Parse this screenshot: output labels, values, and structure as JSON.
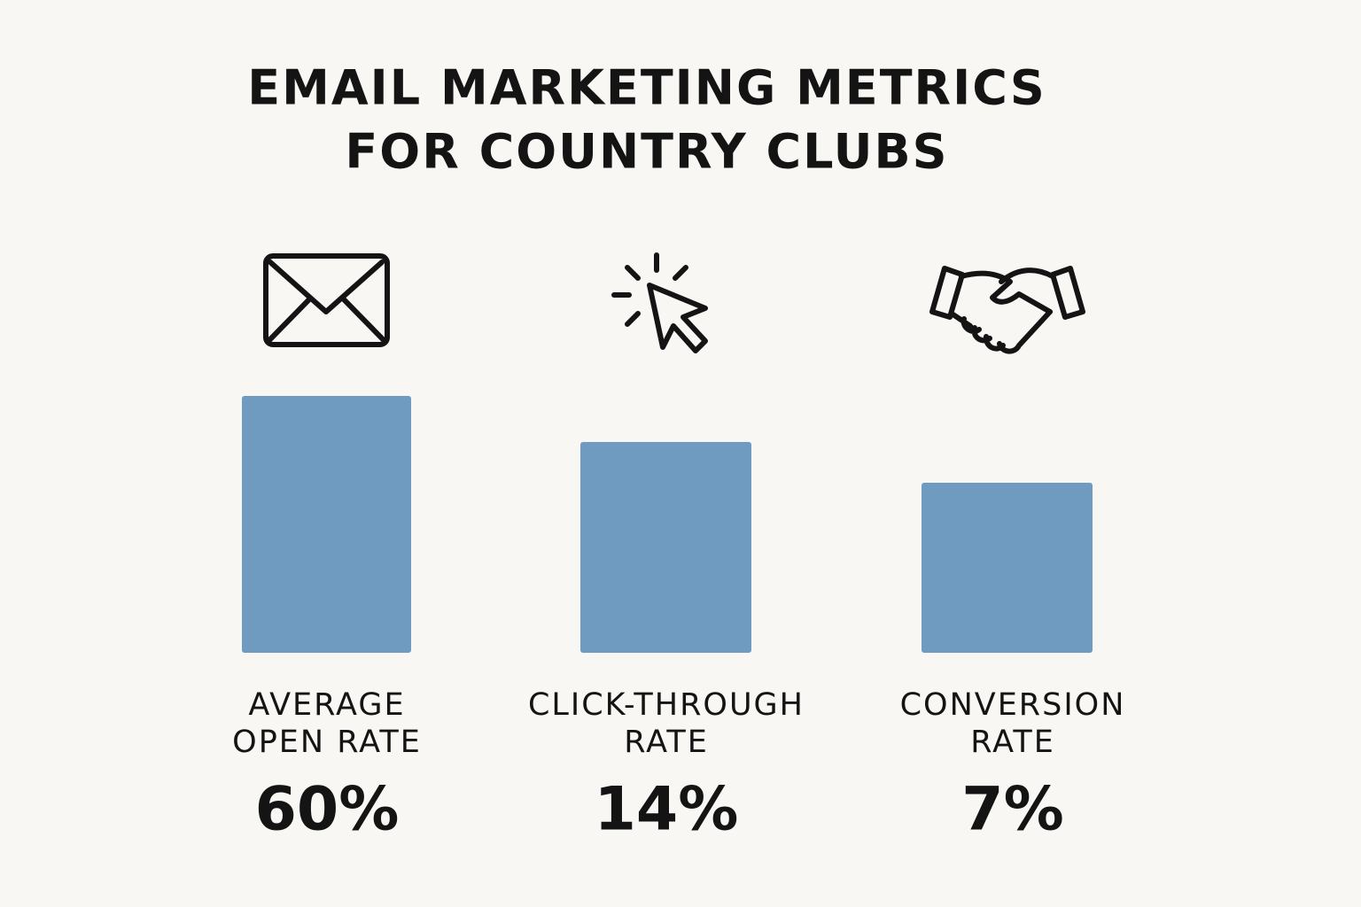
{
  "header": {
    "title": [
      "EMAIL MARKETING METRICS",
      "FOR COUNTRY CLUBS"
    ]
  },
  "items": [
    {
      "label": [
        "AVERAGE",
        "OPEN RATE"
      ],
      "value": "60%"
    },
    {
      "label": [
        "CLICK-THROUGH",
        "RATE"
      ],
      "value": "14%"
    },
    {
      "label": [
        "CONVERSION",
        "RATE"
      ],
      "value": "7%"
    }
  ]
}
